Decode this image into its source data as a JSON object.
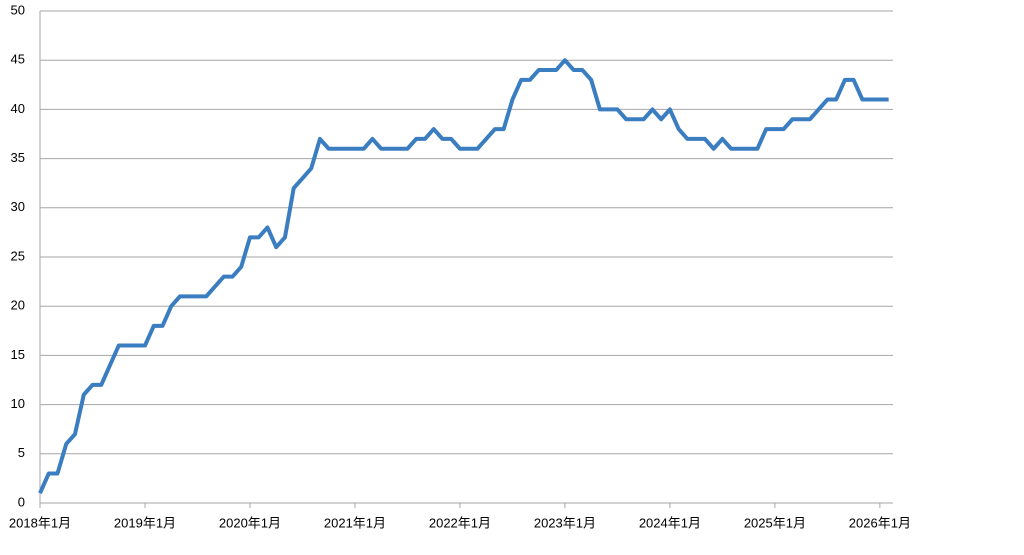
{
  "chart_data": {
    "type": "line",
    "categories": [
      "2018年1月",
      null,
      null,
      null,
      null,
      null,
      null,
      null,
      null,
      null,
      null,
      null,
      "2019年1月",
      null,
      null,
      null,
      null,
      null,
      null,
      null,
      null,
      null,
      null,
      null,
      "2020年1月",
      null,
      null,
      null,
      null,
      null,
      null,
      null,
      null,
      null,
      null,
      null,
      "2021年1月",
      null,
      null,
      null,
      null,
      null,
      null,
      null,
      null,
      null,
      null,
      null,
      "2022年1月",
      null,
      null,
      null,
      null,
      null,
      null,
      null,
      null,
      null,
      null,
      null,
      "2023年1月",
      null,
      null,
      null,
      null,
      null,
      null,
      null,
      null,
      null,
      null,
      null,
      "2024年1月",
      null,
      null,
      null,
      null,
      null,
      null,
      null,
      null,
      null,
      null,
      null,
      "2025年1月",
      null,
      null,
      null,
      null,
      null,
      null,
      null,
      null,
      null,
      null,
      null,
      "2026年1月",
      null
    ],
    "series": [
      {
        "color": "#3a7dc0",
        "values": [
          1,
          3,
          3,
          6,
          7,
          11,
          12,
          12,
          14,
          16,
          16,
          16,
          16,
          18,
          18,
          20,
          21,
          21,
          21,
          21,
          22,
          23,
          23,
          24,
          27,
          27,
          28,
          26,
          27,
          32,
          33,
          34,
          37,
          36,
          36,
          36,
          36,
          36,
          37,
          36,
          36,
          36,
          36,
          37,
          37,
          38,
          37,
          37,
          36,
          36,
          36,
          37,
          38,
          38,
          41,
          43,
          43,
          44,
          44,
          44,
          45,
          44,
          44,
          43,
          40,
          40,
          40,
          39,
          39,
          39,
          40,
          39,
          40,
          38,
          37,
          37,
          37,
          36,
          37,
          36,
          36,
          36,
          36,
          38,
          38,
          38,
          39,
          39,
          39,
          40,
          41,
          41,
          43,
          43,
          41,
          41,
          41,
          41
        ]
      }
    ],
    "ylim": [
      0,
      50
    ],
    "yticks": [
      0,
      5,
      10,
      15,
      20,
      25,
      30,
      35,
      40,
      45,
      50
    ],
    "grid": true
  }
}
